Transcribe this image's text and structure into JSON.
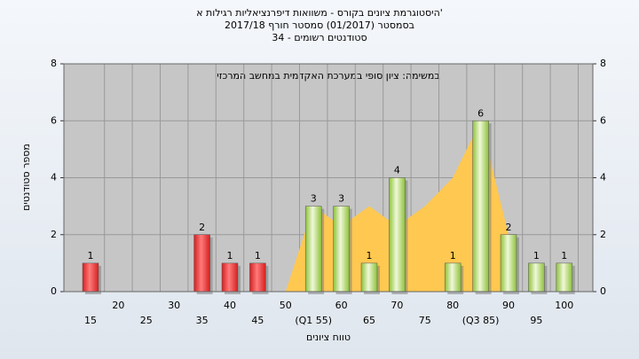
{
  "chart_data": {
    "type": "bar",
    "title": "'היסטוגרמת ציונים בקורס - משוואות דיפרנציאליות רגילות א",
    "subtitle": "בסמסטר (01/2017) סמסטר חורף 2017/18",
    "subtitle2": "סטודנטים רשומים - 34",
    "annotation": "במשימה: ציון סופי במערכת האקדמית במחשב המרכזי",
    "x_label": "טווח ציונים",
    "y_label": "מספר סטודנטים",
    "categories": [
      "15",
      "20",
      "25",
      "30",
      "35",
      "40",
      "45",
      "50",
      "(Q1 55)",
      "60",
      "65",
      "70",
      "75",
      "80",
      "(Q3 85)",
      "90",
      "95",
      "100"
    ],
    "values": [
      1,
      0,
      0,
      0,
      2,
      1,
      1,
      0,
      3,
      3,
      1,
      4,
      0,
      1,
      6,
      2,
      1,
      1
    ],
    "colors": [
      "#d42020",
      "#d42020",
      "#d42020",
      "#d42020",
      "#d42020",
      "#d42020",
      "#d42020",
      "#d42020",
      "#8dc23a",
      "#8dc23a",
      "#8dc23a",
      "#8dc23a",
      "#8dc23a",
      "#8dc23a",
      "#8dc23a",
      "#8dc23a",
      "#8dc23a",
      "#8dc23a"
    ],
    "area_values": [
      null,
      null,
      null,
      null,
      null,
      null,
      null,
      0,
      3,
      2.3,
      3,
      2.3,
      3,
      4,
      6,
      2,
      null,
      null
    ],
    "area_color": "#ffc850",
    "ylim": [
      0,
      8
    ],
    "yticks": [
      0,
      2,
      4,
      6,
      8
    ],
    "y2lim": [
      0,
      8
    ],
    "y2ticks": [
      0,
      2,
      4,
      6,
      8
    ],
    "grid": true
  }
}
